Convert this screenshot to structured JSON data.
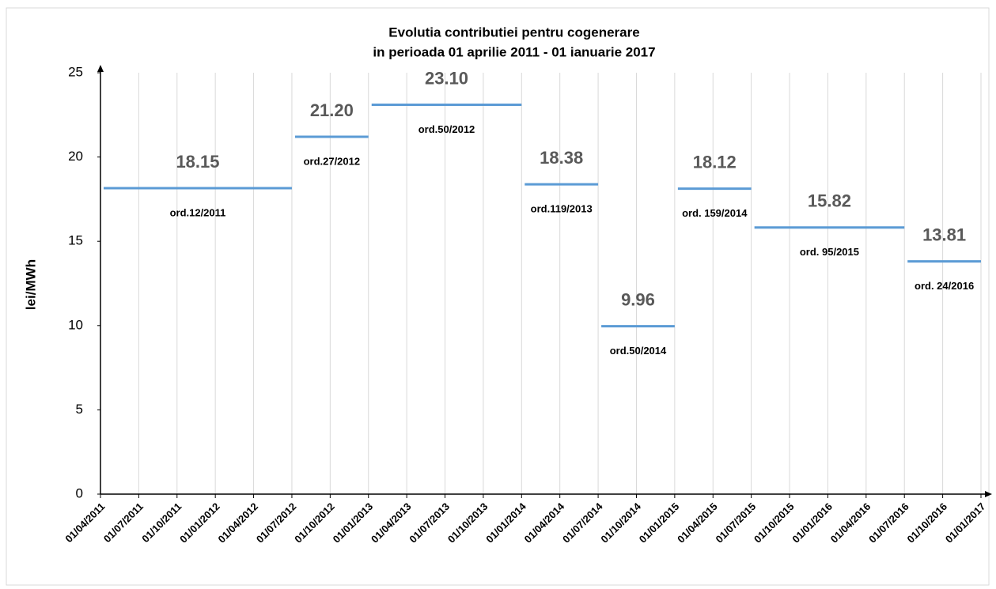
{
  "chart_data": {
    "type": "step-segments",
    "title": [
      "Evolutia contributiei pentru cogenerare",
      "in perioada 01 aprilie 2011 - 01 ianuarie 2017"
    ],
    "y_label": "lei/MWh",
    "categories": [
      "01/04/2011",
      "01/07/2011",
      "01/10/2011",
      "01/01/2012",
      "01/04/2012",
      "01/07/2012",
      "01/10/2012",
      "01/01/2013",
      "01/04/2013",
      "01/07/2013",
      "01/10/2013",
      "01/01/2014",
      "01/04/2014",
      "01/07/2014",
      "01/10/2014",
      "01/01/2015",
      "01/04/2015",
      "01/07/2015",
      "01/10/2015",
      "01/01/2016",
      "01/04/2016",
      "01/07/2016",
      "01/10/2016",
      "01/01/2017"
    ],
    "ylim": [
      0,
      25
    ],
    "yticks": [
      0,
      5,
      10,
      15,
      20,
      25
    ],
    "grid": true,
    "color": "#5b9bd5",
    "segments": {
      "start": [
        "01/04/2011",
        "01/07/2012",
        "01/01/2013",
        "01/01/2014",
        "01/07/2014",
        "01/01/2015",
        "01/07/2015",
        "01/07/2016"
      ],
      "end": [
        "01/07/2012",
        "01/01/2013",
        "01/01/2014",
        "01/07/2014",
        "01/01/2015",
        "01/07/2015",
        "01/07/2016",
        "01/01/2017"
      ],
      "values": [
        18.15,
        21.2,
        23.1,
        18.38,
        9.96,
        18.12,
        15.82,
        13.81
      ],
      "value_labels": [
        "18.15",
        "21.20",
        "23.10",
        "18.38",
        "9.96",
        "18.12",
        "15.82",
        "13.81"
      ],
      "orders": [
        "ord.12/2011",
        "ord.27/2012",
        "ord.50/2012",
        "ord.119/2013",
        "ord.50/2014",
        "ord. 159/2014",
        "ord. 95/2015",
        "ord. 24/2016"
      ]
    }
  }
}
